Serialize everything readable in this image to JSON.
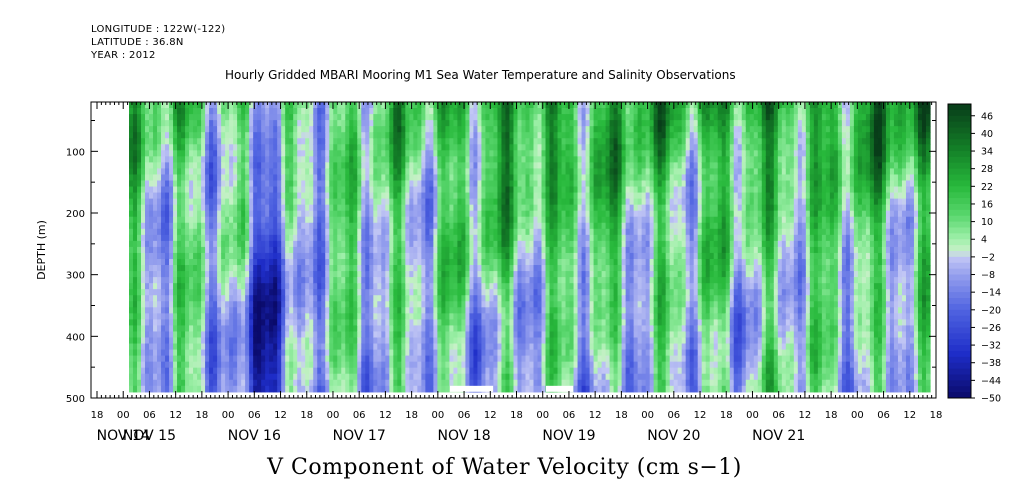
{
  "header": {
    "longitude": "LONGITUDE : 122W(-122)",
    "latitude": "LATITUDE : 36.8N",
    "year": "YEAR : 2012"
  },
  "chart_data": {
    "type": "heatmap",
    "title": "Hourly Gridded MBARI Mooring M1 Sea Water Temperature and Salinity Observations",
    "xlabel": "V Component of Water Velocity (cm s−1)",
    "ylabel": "DEPTH (m)",
    "x_hour_ticks": [
      "18",
      "00",
      "06",
      "12",
      "18",
      "00",
      "06",
      "12",
      "18",
      "00",
      "06",
      "12",
      "18",
      "00",
      "06",
      "12",
      "18",
      "00",
      "06",
      "12",
      "18",
      "00",
      "06",
      "12",
      "18",
      "00",
      "06",
      "12",
      "18",
      "00",
      "06",
      "12",
      "18"
    ],
    "x_day_labels": [
      "NOV 14",
      "NOV 15",
      "NOV 16",
      "NOV 17",
      "NOV 18",
      "NOV 19",
      "NOV 20",
      "NOV 21"
    ],
    "y_ticks": [
      100,
      200,
      300,
      400,
      500
    ],
    "ylim": [
      500,
      20
    ],
    "data_depth_range": [
      20,
      490
    ],
    "colorbar_labels": [
      "46",
      "40",
      "34",
      "28",
      "22",
      "16",
      "10",
      "4",
      "-2",
      "-8",
      "-14",
      "-20",
      "-26",
      "-32",
      "-38",
      "-44",
      "-50"
    ],
    "colorbar_range": [
      -50,
      50
    ],
    "colors": {
      "strong_positive": "#0b4a1c",
      "positive": "#2fc24a",
      "weak_positive": "#a8f0b0",
      "weak_negative": "#aab0ee",
      "negative": "#4f66e0",
      "strong_negative": "#0a0a6a"
    }
  }
}
